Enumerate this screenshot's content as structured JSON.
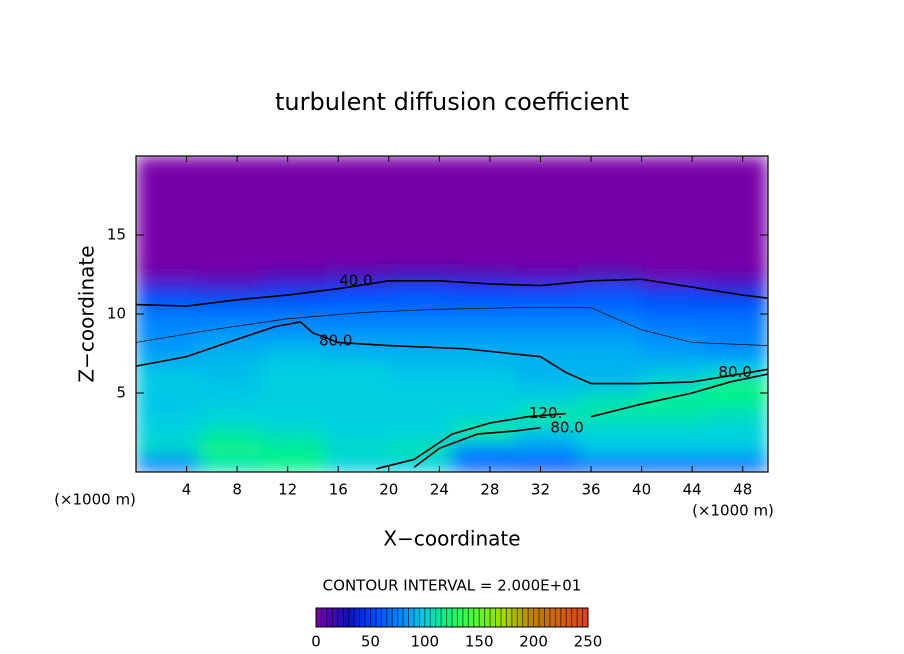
{
  "chart_data": {
    "type": "contour",
    "title": "turbulent diffusion coefficient",
    "xlabel": "X−coordinate",
    "ylabel": "Z−coordinate",
    "xunit": "(×1000 m)",
    "yunit": "(×1000 m)",
    "xlim": [
      0,
      50
    ],
    "xticks": [
      4,
      8,
      12,
      16,
      20,
      24,
      28,
      32,
      36,
      40,
      44,
      48
    ],
    "ylim": [
      0,
      20
    ],
    "yticks": [
      5,
      10,
      15
    ],
    "contour_interval": "CONTOUR INTERVAL = 2.000E+01",
    "clim": [
      0,
      250
    ],
    "cticks": [
      0,
      50,
      100,
      150,
      200,
      250
    ],
    "colormap": [
      {
        "value": 0,
        "color": "#7800a8"
      },
      {
        "value": 30,
        "color": "#1010c0"
      },
      {
        "value": 50,
        "color": "#0040ff"
      },
      {
        "value": 80,
        "color": "#0090ff"
      },
      {
        "value": 100,
        "color": "#00d0e0"
      },
      {
        "value": 115,
        "color": "#00f090"
      },
      {
        "value": 140,
        "color": "#40ff40"
      },
      {
        "value": 170,
        "color": "#a0e000"
      },
      {
        "value": 200,
        "color": "#c08000"
      },
      {
        "value": 250,
        "color": "#e04020"
      }
    ],
    "field": {
      "x": [
        2.5,
        7.5,
        12.5,
        17.5,
        22.5,
        27.5,
        32.5,
        37.5,
        42.5,
        47.5
      ],
      "z": [
        0.5,
        1.5,
        2.5,
        3.5,
        4.5,
        5.5,
        6.5,
        7.5,
        8.5,
        9.5,
        10.5,
        11.5,
        12.5,
        13.5,
        17
      ],
      "values": [
        [
          70,
          110,
          115,
          100,
          100,
          60,
          50,
          60,
          60,
          60
        ],
        [
          105,
          120,
          115,
          105,
          110,
          80,
          85,
          100,
          100,
          100
        ],
        [
          100,
          110,
          105,
          100,
          100,
          120,
          95,
          100,
          100,
          100
        ],
        [
          100,
          100,
          100,
          100,
          100,
          100,
          115,
          110,
          110,
          105
        ],
        [
          95,
          100,
          100,
          100,
          100,
          100,
          100,
          110,
          115,
          115
        ],
        [
          100,
          95,
          100,
          100,
          100,
          100,
          95,
          95,
          105,
          120
        ],
        [
          95,
          95,
          100,
          100,
          95,
          95,
          90,
          90,
          95,
          100
        ],
        [
          85,
          90,
          95,
          90,
          90,
          90,
          90,
          90,
          85,
          80
        ],
        [
          80,
          85,
          85,
          85,
          85,
          85,
          85,
          85,
          80,
          75
        ],
        [
          75,
          75,
          75,
          75,
          75,
          75,
          75,
          75,
          70,
          70
        ],
        [
          65,
          65,
          65,
          65,
          65,
          65,
          65,
          65,
          60,
          60
        ],
        [
          45,
          40,
          45,
          50,
          55,
          50,
          50,
          55,
          45,
          40
        ],
        [
          5,
          5,
          10,
          15,
          20,
          15,
          10,
          15,
          5,
          5
        ],
        [
          0,
          0,
          0,
          0,
          0,
          0,
          0,
          0,
          0,
          0
        ],
        [
          0,
          0,
          0,
          0,
          0,
          0,
          0,
          0,
          0,
          0
        ]
      ]
    },
    "contours": [
      {
        "level": 40,
        "label": "40.0",
        "label_x": 17.4,
        "label_y": 12.1,
        "width": 1.6,
        "x": [
          0,
          4,
          8,
          12,
          16,
          20,
          24,
          28,
          32,
          36,
          40,
          44,
          48,
          50
        ],
        "y": [
          10.6,
          10.5,
          10.9,
          11.2,
          11.6,
          12.1,
          12.1,
          11.9,
          11.8,
          12.1,
          12.2,
          11.7,
          11.2,
          11.0
        ]
      },
      {
        "level": 60,
        "width": 0.7,
        "x": [
          0,
          6,
          12,
          18,
          24,
          30,
          36,
          40,
          44,
          50
        ],
        "y": [
          8.2,
          9.0,
          9.7,
          10.1,
          10.3,
          10.4,
          10.4,
          9.0,
          8.2,
          8.0
        ]
      },
      {
        "level": 80,
        "label": "80.0",
        "label_x": 15.8,
        "label_y": 8.3,
        "width": 1.6,
        "x": [
          0,
          4,
          8,
          11,
          13,
          14,
          16,
          20,
          26,
          32,
          34,
          36,
          40,
          44,
          50
        ],
        "y": [
          6.7,
          7.3,
          8.4,
          9.2,
          9.5,
          8.8,
          8.2,
          8.0,
          7.8,
          7.3,
          6.3,
          5.6,
          5.6,
          5.7,
          6.5
        ]
      },
      {
        "level": 80,
        "label": "80.0",
        "label_x": 47.4,
        "label_y": 6.3,
        "width": 1.6,
        "x": [
          36,
          40,
          44,
          47,
          50
        ],
        "y": [
          3.5,
          4.3,
          5.0,
          5.7,
          6.2
        ]
      },
      {
        "level": 120,
        "label": "120.",
        "label_x": 32.4,
        "label_y": 3.7,
        "width": 1.6,
        "x": [
          19,
          22,
          25,
          28,
          31,
          34
        ],
        "y": [
          0.2,
          0.8,
          2.4,
          3.1,
          3.5,
          3.7
        ]
      },
      {
        "level": 80,
        "label": "80.0",
        "label_x": 34.1,
        "label_y": 2.8,
        "width": 1.6,
        "x": [
          22,
          24,
          27,
          30,
          32
        ],
        "y": [
          0.3,
          1.5,
          2.4,
          2.6,
          2.8
        ]
      }
    ]
  }
}
